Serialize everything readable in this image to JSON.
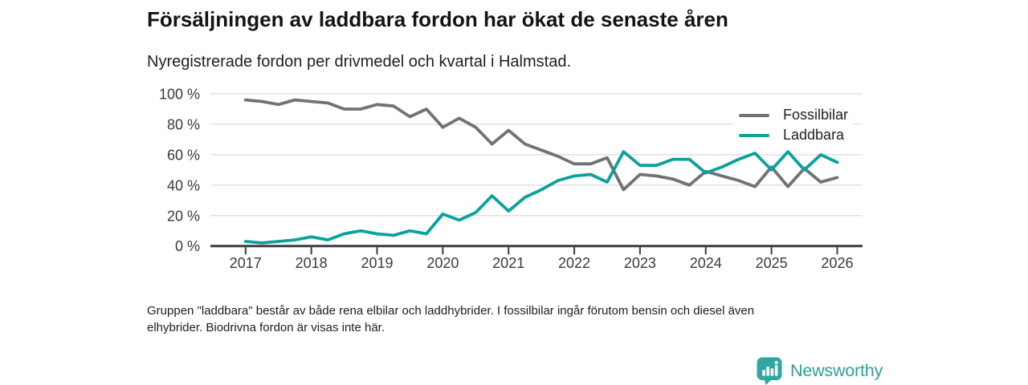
{
  "header": {
    "title": "Försäljningen av laddbara fordon har ökat de senaste åren",
    "subtitle": "Nyregistrerade fordon per drivmedel och kvartal i Halmstad."
  },
  "footnote": {
    "line1": "Gruppen \"laddbara\" består av både rena elbilar och laddhybrider. I fossilbilar ingår förutom bensin och diesel även",
    "line2": "elhybrider. Biodrivna fordon är visas inte här."
  },
  "brand": {
    "name": "Newsworthy",
    "text_color": "#2f9e9a",
    "icon_color": "#31a6a1",
    "icon": "bar-chart-speech-bubble-icon"
  },
  "chart_data": {
    "type": "line",
    "title": "Försäljningen av laddbara fordon har ökat de senaste åren",
    "subtitle": "Nyregistrerade fordon per drivmedel och kvartal i Halmstad.",
    "unit": "%",
    "ylim": [
      0,
      100
    ],
    "grid": true,
    "legend_position": "top-right",
    "axis_color": "#3d3d3d",
    "gridline_color": "#e0e0e0",
    "tick_label_color": "#3a3a3a",
    "y_tick_values": [
      0,
      20,
      40,
      60,
      80,
      100
    ],
    "y_tick_labels": [
      "0 %",
      "20 %",
      "40 %",
      "60 %",
      "80 %",
      "100 %"
    ],
    "x_tick_labels": [
      "2017",
      "2018",
      "2019",
      "2020",
      "2021",
      "2022",
      "2023",
      "2024",
      "2025",
      "2026"
    ],
    "x": [
      "2017 Q1",
      "2017 Q2",
      "2017 Q3",
      "2017 Q4",
      "2018 Q1",
      "2018 Q2",
      "2018 Q3",
      "2018 Q4",
      "2019 Q1",
      "2019 Q2",
      "2019 Q3",
      "2019 Q4",
      "2020 Q1",
      "2020 Q2",
      "2020 Q3",
      "2020 Q4",
      "2021 Q1",
      "2021 Q2",
      "2021 Q3",
      "2021 Q4",
      "2022 Q1",
      "2022 Q2",
      "2022 Q3",
      "2022 Q4",
      "2023 Q1",
      "2023 Q2",
      "2023 Q3",
      "2023 Q4",
      "2024 Q1",
      "2024 Q2",
      "2024 Q3",
      "2024 Q4",
      "2025 Q1",
      "2025 Q2",
      "2025 Q3",
      "2025 Q4",
      "2026 Q1"
    ],
    "series": [
      {
        "name": "Fossilbilar",
        "color": "#717177",
        "values": [
          96,
          95,
          93,
          96,
          95,
          94,
          90,
          90,
          93,
          92,
          85,
          90,
          78,
          84,
          78,
          67,
          76,
          67,
          63,
          59,
          54,
          54,
          58,
          37,
          47,
          46,
          44,
          40,
          49,
          46,
          43,
          39,
          52,
          39,
          51,
          42,
          45
        ]
      },
      {
        "name": "Laddbara",
        "color": "#0aa29b",
        "values": [
          3,
          2,
          3,
          4,
          6,
          4,
          8,
          10,
          8,
          7,
          10,
          8,
          21,
          17,
          22,
          33,
          23,
          32,
          37,
          43,
          46,
          47,
          42,
          62,
          53,
          53,
          57,
          57,
          48,
          52,
          57,
          61,
          50,
          62,
          50,
          60,
          55
        ]
      }
    ]
  }
}
